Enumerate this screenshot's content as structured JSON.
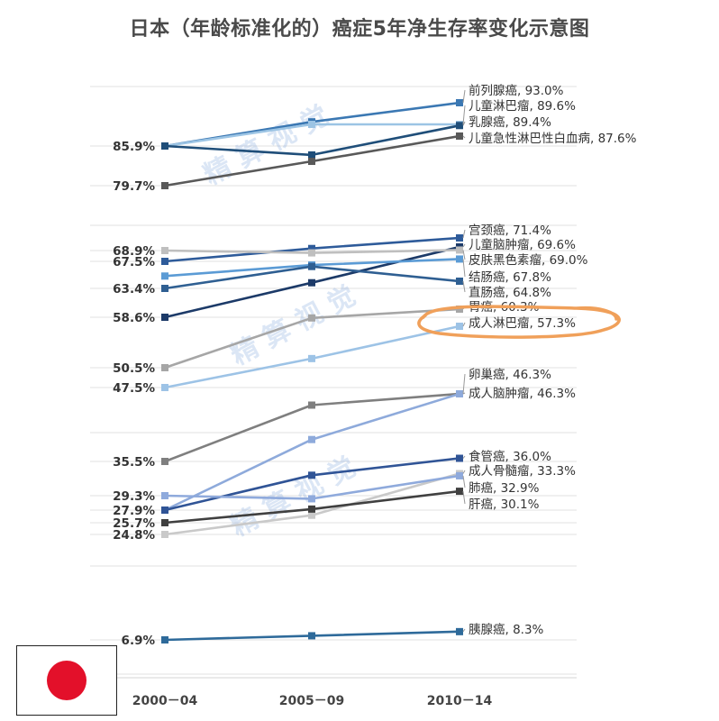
{
  "title": "日本（年龄标准化的）癌症5年净生存率变化示意图",
  "watermark": "精 算 视 觉",
  "colors": {
    "highlight_oval": "#f0a05a",
    "grid": "#e2e2e2",
    "flag_red": "#e3102a"
  },
  "chart_data": {
    "type": "line",
    "title": "日本（年龄标准化的）癌症5年净生存率变化示意图",
    "xlabel": "",
    "ylabel": "",
    "categories": [
      "2000－04",
      "2005－09",
      "2010－14"
    ],
    "start_labels": [
      "85.9%",
      "79.7%",
      "68.9%",
      "67.5%",
      "63.4%",
      "58.6%",
      "50.5%",
      "47.5%",
      "35.5%",
      "29.3%",
      "27.9%",
      "25.7%",
      "24.8%",
      "6.9%"
    ],
    "highlighted_series": "成人淋巴瘤",
    "series": [
      {
        "name": "前列腺癌",
        "label": "前列腺癌, 93.0%",
        "values": [
          85.9,
          90.0,
          93.0
        ],
        "color": "#3b78b3"
      },
      {
        "name": "儿童淋巴瘤",
        "label": "儿童淋巴瘤, 89.6%",
        "values": [
          85.9,
          89.6,
          89.6
        ],
        "color": "#9cc4e4"
      },
      {
        "name": "乳腺癌",
        "label": "乳腺癌, 89.4%",
        "values": [
          85.9,
          84.5,
          89.4
        ],
        "color": "#1f4e79"
      },
      {
        "name": "儿童急性淋巴性白血病",
        "label": "儿童急性淋巴性白血病, 87.6%",
        "values": [
          79.7,
          83.5,
          87.6
        ],
        "color": "#595959"
      },
      {
        "name": "宫颈癌",
        "label": "宫颈癌, 71.4%",
        "values": [
          67.5,
          69.3,
          71.4
        ],
        "color": "#2e5b9a"
      },
      {
        "name": "儿童脑肿瘤",
        "label": "儿童脑肿瘤, 69.6%",
        "values": [
          58.6,
          64.5,
          69.6
        ],
        "color": "#1c3a68"
      },
      {
        "name": "皮肤黑色素瘤",
        "label": "皮肤黑色素瘤, 69.0%",
        "values": [
          68.9,
          68.6,
          69.0
        ],
        "color": "#bfbfbf"
      },
      {
        "name": "结肠癌",
        "label": "结肠癌, 67.8%",
        "values": [
          65.5,
          67.0,
          67.8
        ],
        "color": "#5b9bd5"
      },
      {
        "name": "直肠癌",
        "label": "直肠癌, 64.8%",
        "values": [
          63.4,
          66.8,
          64.8
        ],
        "color": "#2f5f92"
      },
      {
        "name": "胃癌",
        "label": "胃癌, 60.3%",
        "values": [
          50.5,
          58.5,
          60.3
        ],
        "color": "#a6a6a6"
      },
      {
        "name": "成人淋巴瘤",
        "label": "成人淋巴瘤, 57.3%",
        "values": [
          47.5,
          52.0,
          57.3
        ],
        "color": "#9dc3e6"
      },
      {
        "name": "卵巢癌",
        "label": "卵巢癌, 46.3%",
        "values": [
          35.5,
          44.5,
          46.3
        ],
        "color": "#7f7f7f"
      },
      {
        "name": "成人脑肿瘤",
        "label": "成人脑肿瘤, 46.3%",
        "values": [
          27.9,
          39.0,
          46.3
        ],
        "color": "#8eaadb"
      },
      {
        "name": "食管癌",
        "label": "食管癌, 36.0%",
        "values": [
          27.9,
          33.0,
          36.0
        ],
        "color": "#305496"
      },
      {
        "name": "成人骨髓瘤",
        "label": "成人骨髓瘤, 33.3%",
        "values": [
          24.8,
          27.0,
          33.3
        ],
        "color": "#c9c9c9"
      },
      {
        "name": "肺癌",
        "label": "肺癌, 32.9%",
        "values": [
          29.3,
          29.0,
          32.9
        ],
        "color": "#8faadc"
      },
      {
        "name": "肝癌",
        "label": "肝癌, 30.1%",
        "values": [
          25.7,
          28.0,
          30.1
        ],
        "color": "#404040"
      },
      {
        "name": "胰腺癌",
        "label": "胰腺癌, 8.3%",
        "values": [
          6.9,
          7.6,
          8.3
        ],
        "color": "#2e6a9a"
      }
    ]
  }
}
